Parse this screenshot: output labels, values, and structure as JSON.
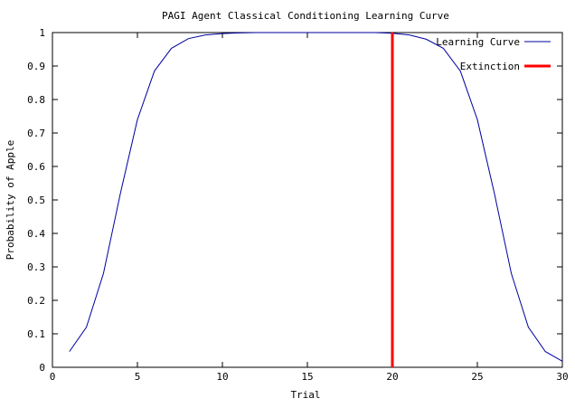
{
  "chart_data": {
    "type": "line",
    "title": "PAGI Agent Classical Conditioning Learning Curve",
    "xlabel": "Trial",
    "ylabel": "Probability of Apple",
    "xlim": [
      0,
      30
    ],
    "ylim": [
      0,
      1
    ],
    "xticks": [
      0,
      5,
      10,
      15,
      20,
      25,
      30
    ],
    "yticks": [
      0,
      0.1,
      0.2,
      0.3,
      0.4,
      0.5,
      0.6,
      0.7,
      0.8,
      0.9,
      1
    ],
    "grid": false,
    "legend_position": "top-right",
    "series": [
      {
        "name": "Learning Curve",
        "color": "#0000a0",
        "x": [
          1,
          2,
          3,
          4,
          5,
          6,
          7,
          8,
          9,
          10,
          11,
          12,
          13,
          14,
          15,
          16,
          17,
          18,
          19,
          20,
          21,
          22,
          23,
          24,
          25,
          26,
          27,
          28,
          29,
          30
        ],
        "values": [
          0.047,
          0.12,
          0.28,
          0.52,
          0.74,
          0.885,
          0.953,
          0.982,
          0.993,
          0.997,
          0.999,
          1,
          1,
          1,
          1,
          1,
          1,
          1,
          1,
          0.998,
          0.993,
          0.98,
          0.953,
          0.885,
          0.74,
          0.52,
          0.28,
          0.12,
          0.047,
          0.018
        ]
      },
      {
        "name": "Extinction",
        "color": "#ff0000",
        "x": [
          20,
          20
        ],
        "values": [
          0,
          1
        ]
      }
    ]
  }
}
